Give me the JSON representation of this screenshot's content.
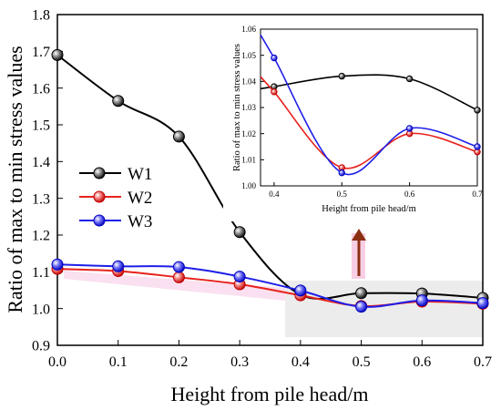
{
  "chart_data": [
    {
      "type": "line",
      "xlabel": "Height from pile head/m",
      "ylabel": "Ratio of max to min stress values",
      "xlim": [
        0.0,
        0.7
      ],
      "ylim": [
        0.9,
        1.8
      ],
      "x_ticks": [
        "0.0",
        "0.1",
        "0.2",
        "0.3",
        "0.4",
        "0.5",
        "0.6",
        "0.7"
      ],
      "y_ticks": [
        "0.9",
        "1.0",
        "1.1",
        "1.2",
        "1.3",
        "1.4",
        "1.5",
        "1.6",
        "1.7",
        "1.8"
      ],
      "x": [
        0.0,
        0.1,
        0.2,
        0.3,
        0.4,
        0.5,
        0.6,
        0.7
      ],
      "legend_position": "middle-left",
      "grid": false,
      "series": [
        {
          "name": "W1",
          "color": "#000000",
          "values": [
            1.69,
            1.565,
            1.468,
            1.208,
            1.038,
            1.042,
            1.041,
            1.029
          ]
        },
        {
          "name": "W2",
          "color": "#e8221c",
          "values": [
            1.108,
            1.102,
            1.085,
            1.066,
            1.036,
            1.007,
            1.019,
            1.013
          ]
        },
        {
          "name": "W3",
          "color": "#1e1ee8",
          "values": [
            1.12,
            1.115,
            1.113,
            1.087,
            1.049,
            1.005,
            1.022,
            1.015
          ]
        }
      ]
    },
    {
      "type": "line",
      "xlabel": "Height from pile head/m",
      "ylabel": "Ratio of max to min stress values",
      "xlim": [
        0.38,
        0.7
      ],
      "ylim": [
        1.0,
        1.06
      ],
      "x_ticks": [
        "0.4",
        "0.5",
        "0.6",
        "0.7"
      ],
      "y_ticks": [
        "1.00",
        "1.01",
        "1.02",
        "1.03",
        "1.04",
        "1.05",
        "1.06"
      ],
      "x": [
        0.4,
        0.5,
        0.6,
        0.7
      ],
      "grid": false,
      "series": [
        {
          "name": "W1",
          "color": "#000000",
          "values": [
            1.038,
            1.042,
            1.041,
            1.029
          ]
        },
        {
          "name": "W2",
          "color": "#e8221c",
          "values": [
            1.036,
            1.007,
            1.02,
            1.013
          ]
        },
        {
          "name": "W3",
          "color": "#1e1ee8",
          "values": [
            1.049,
            1.005,
            1.022,
            1.015
          ]
        }
      ]
    }
  ]
}
